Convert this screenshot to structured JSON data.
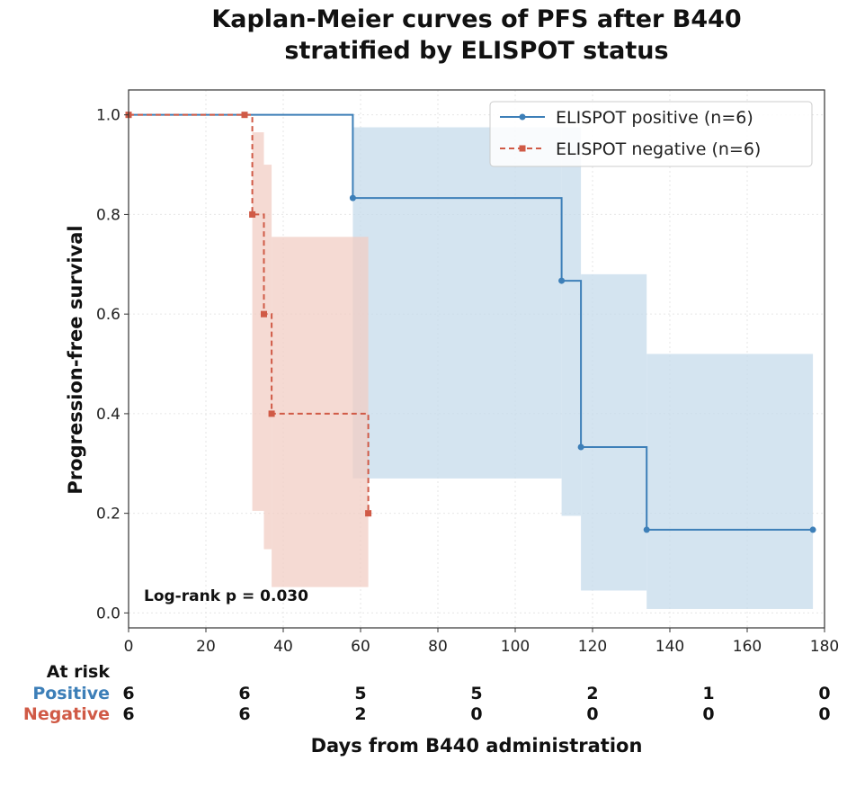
{
  "chart_data": {
    "type": "line",
    "title_lines": [
      "Kaplan-Meier curves of PFS after B440",
      "stratified by ELISPOT status"
    ],
    "xlabel": "Days from B440 administration",
    "ylabel": "Progression-free survival",
    "xlim": [
      0,
      180
    ],
    "ylim": [
      -0.03,
      1.05
    ],
    "xticks": [
      0,
      20,
      40,
      60,
      80,
      100,
      120,
      140,
      160,
      180
    ],
    "yticks": [
      0.0,
      0.2,
      0.4,
      0.6,
      0.8,
      1.0
    ],
    "grid": true,
    "legend_position": "top-right",
    "annotation": "Log-rank p = 0.030",
    "series": [
      {
        "name": "ELISPOT positive (n=6)",
        "color": "#3d7fb8",
        "band_color": "#c5dbeb",
        "dash": false,
        "marker": "circle",
        "steps": [
          {
            "x": 0,
            "y": 1.0
          },
          {
            "x": 58,
            "y": 0.833
          },
          {
            "x": 112,
            "y": 0.667
          },
          {
            "x": 117,
            "y": 0.333
          },
          {
            "x": 134,
            "y": 0.167
          },
          {
            "x": 177,
            "y": 0.167
          }
        ],
        "points": [
          {
            "x": 58,
            "y": 0.833
          },
          {
            "x": 112,
            "y": 0.667
          },
          {
            "x": 117,
            "y": 0.333
          },
          {
            "x": 134,
            "y": 0.167
          },
          {
            "x": 177,
            "y": 0.167
          }
        ],
        "ci": [
          {
            "x0": 58,
            "x1": 112,
            "lo": 0.27,
            "hi": 0.975
          },
          {
            "x0": 112,
            "x1": 117,
            "lo": 0.195,
            "hi": 0.975
          },
          {
            "x0": 117,
            "x1": 134,
            "lo": 0.045,
            "hi": 0.68
          },
          {
            "x0": 134,
            "x1": 177,
            "lo": 0.008,
            "hi": 0.52
          }
        ]
      },
      {
        "name": "ELISPOT negative (n=6)",
        "color": "#d05a46",
        "band_color": "#f2cdc4",
        "dash": true,
        "marker": "square",
        "steps": [
          {
            "x": 0,
            "y": 1.0
          },
          {
            "x": 32,
            "y": 0.8
          },
          {
            "x": 35,
            "y": 0.6
          },
          {
            "x": 37,
            "y": 0.4
          },
          {
            "x": 62,
            "y": 0.2
          }
        ],
        "points": [
          {
            "x": 0,
            "y": 1.0
          },
          {
            "x": 30,
            "y": 1.0
          },
          {
            "x": 32,
            "y": 0.8
          },
          {
            "x": 35,
            "y": 0.6
          },
          {
            "x": 37,
            "y": 0.4
          },
          {
            "x": 62,
            "y": 0.2
          }
        ],
        "ci": [
          {
            "x0": 32,
            "x1": 35,
            "lo": 0.205,
            "hi": 0.965
          },
          {
            "x0": 35,
            "x1": 37,
            "lo": 0.128,
            "hi": 0.9
          },
          {
            "x0": 37,
            "x1": 62,
            "lo": 0.052,
            "hi": 0.755
          }
        ]
      }
    ],
    "at_risk": {
      "header": "At risk",
      "times": [
        0,
        30,
        60,
        90,
        120,
        150,
        180
      ],
      "rows": [
        {
          "label": "Positive",
          "color": "#3d7fb8",
          "counts": [
            "6",
            "6",
            "5",
            "5",
            "2",
            "1",
            "0"
          ]
        },
        {
          "label": "Negative",
          "color": "#d05a46",
          "counts": [
            "6",
            "6",
            "2",
            "0",
            "0",
            "0",
            "0"
          ]
        }
      ]
    }
  }
}
